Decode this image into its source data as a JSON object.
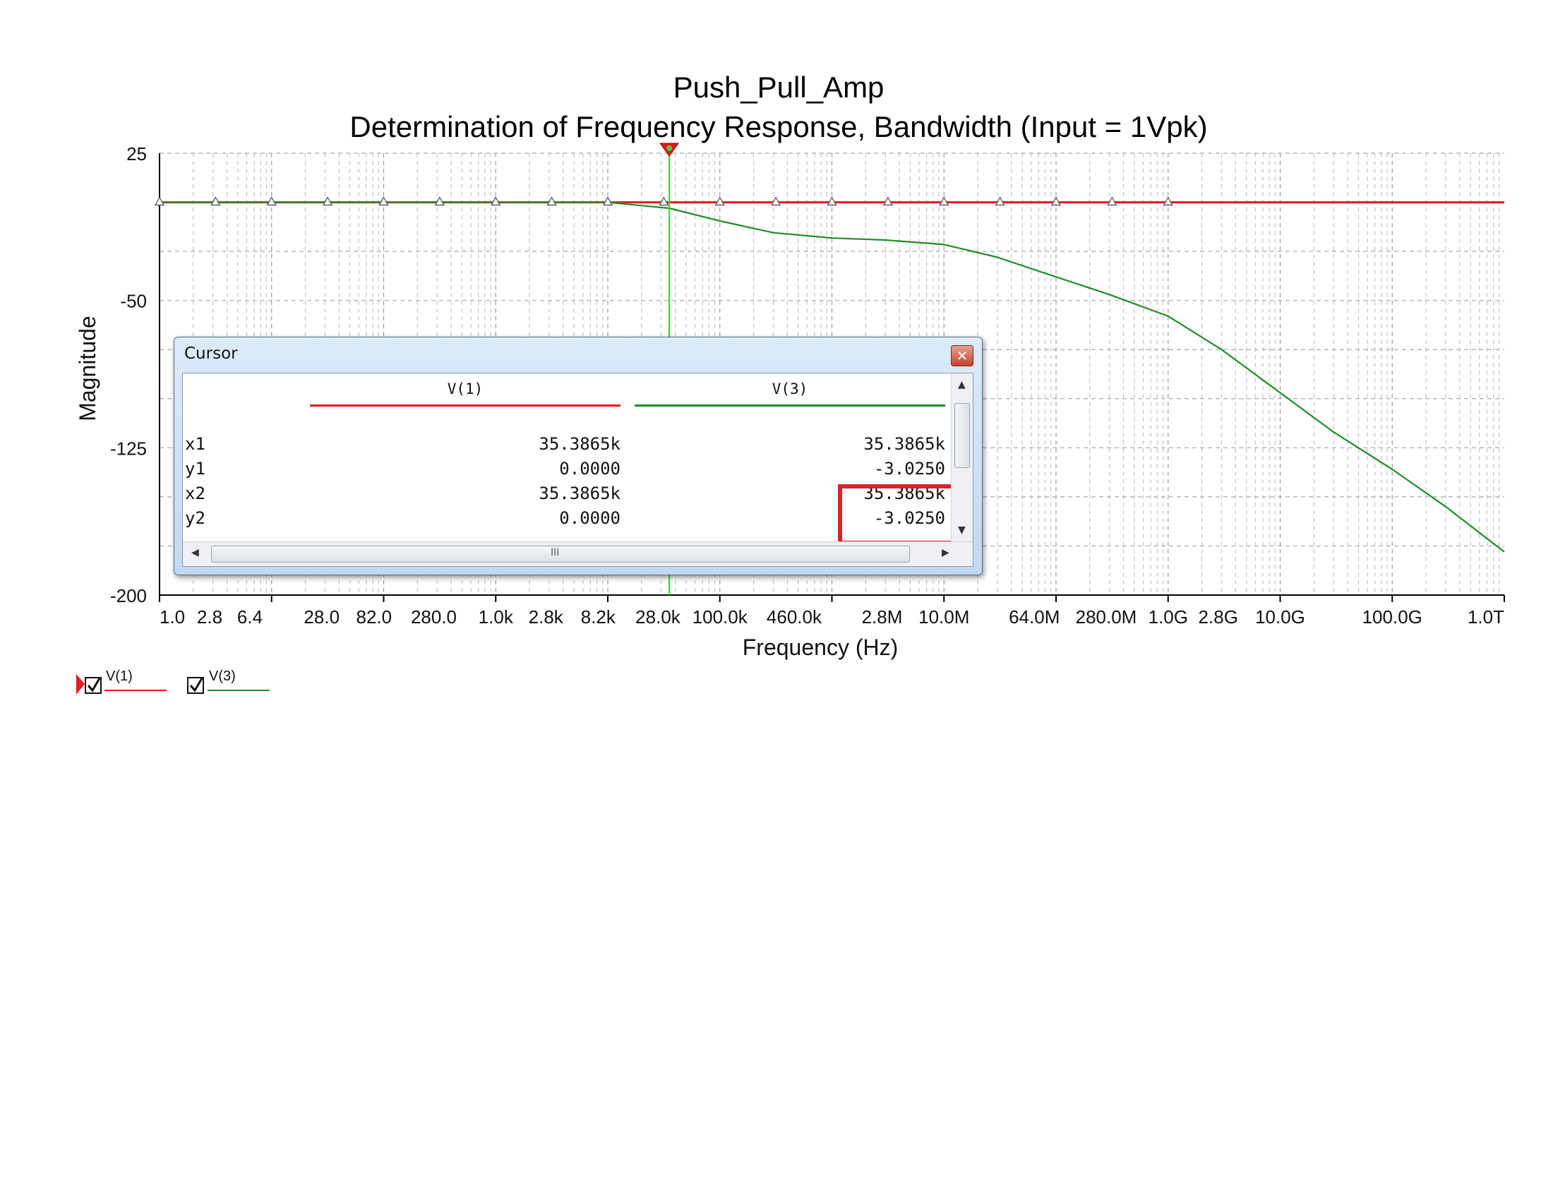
{
  "chart_data": {
    "type": "line",
    "title": "Push_Pull_Amp",
    "subtitle": "Determination of Frequency Response, Bandwidth (Input = 1Vpk)",
    "xlabel": "Frequency (Hz)",
    "ylabel": "Magnitude",
    "x_scale": "log",
    "xlim": [
      1,
      1000000000000
    ],
    "ylim": [
      -200,
      25
    ],
    "grid": true,
    "y_ticks": [
      {
        "value": 25,
        "label": "25"
      },
      {
        "value": -50,
        "label": "-50"
      },
      {
        "value": -125,
        "label": "-125"
      },
      {
        "value": -200,
        "label": "-200"
      }
    ],
    "x_ticks": [
      {
        "value": 1.0,
        "label": "1.0"
      },
      {
        "value": 2.8,
        "label": "2.8"
      },
      {
        "value": 6.4,
        "label": "6.4"
      },
      {
        "value": 28.0,
        "label": "28.0"
      },
      {
        "value": 82.0,
        "label": "82.0"
      },
      {
        "value": 280.0,
        "label": "280.0"
      },
      {
        "value": 1000,
        "label": "1.0k"
      },
      {
        "value": 2800,
        "label": "2.8k"
      },
      {
        "value": 8200,
        "label": "8.2k"
      },
      {
        "value": 28000,
        "label": "28.0k"
      },
      {
        "value": 100000,
        "label": "100.0k"
      },
      {
        "value": 460000,
        "label": "460.0k"
      },
      {
        "value": 2800000,
        "label": "2.8M"
      },
      {
        "value": 10000000,
        "label": "10.0M"
      },
      {
        "value": 64000000,
        "label": "64.0M"
      },
      {
        "value": 280000000,
        "label": "280.0M"
      },
      {
        "value": 1000000000,
        "label": "1.0G"
      },
      {
        "value": 2800000000,
        "label": "2.8G"
      },
      {
        "value": 10000000000,
        "label": "10.0G"
      },
      {
        "value": 100000000000,
        "label": "100.0G"
      },
      {
        "value": 1000000000000,
        "label": "1.0T"
      }
    ],
    "series": [
      {
        "name": "V(1)",
        "color": "#e8191e",
        "x": [
          1,
          1000000000000
        ],
        "y": [
          0,
          0
        ]
      },
      {
        "name": "V(3)",
        "color": "#1e8c28",
        "x": [
          1,
          10000,
          35386.5,
          100000,
          300000,
          1000000,
          3000000,
          10000000,
          30000000,
          100000000,
          300000000,
          1000000000,
          3000000000,
          10000000000,
          30000000000,
          100000000000,
          300000000000,
          1000000000000
        ],
        "y": [
          0,
          0,
          -3.025,
          -9.5,
          -15.5,
          -18.2,
          -19.2,
          -21.5,
          -28,
          -38,
          -47,
          -58,
          -75,
          -97,
          -117,
          -136,
          -155,
          -178
        ]
      }
    ],
    "markers_x": [
      1,
      3.16,
      10,
      31.6,
      100,
      316,
      1000,
      3162,
      10000,
      31623,
      100000,
      316228,
      1000000,
      3162278,
      10000000,
      31622777,
      100000000,
      316227766,
      1000000000
    ],
    "cursor_x": 35386.5,
    "legend": {
      "placement": "bottom-left",
      "items": [
        {
          "label": "V(1)",
          "color": "#e8191e",
          "checked": true
        },
        {
          "label": "V(3)",
          "color": "#1e8c28",
          "checked": true
        }
      ]
    }
  },
  "cursor_window": {
    "title": "Cursor",
    "close_glyph": "✕",
    "columns": [
      {
        "name": "V(1)",
        "color": "#e8191e"
      },
      {
        "name": "V(3)",
        "color": "#1e8c28"
      }
    ],
    "rows": [
      {
        "label": "x1",
        "values": [
          "35.3865k",
          "35.3865k"
        ]
      },
      {
        "label": "y1",
        "values": [
          "0.0000",
          "-3.0250"
        ]
      },
      {
        "label": "x2",
        "values": [
          "35.3865k",
          "35.3865k"
        ]
      },
      {
        "label": "y2",
        "values": [
          "0.0000",
          "-3.0250"
        ]
      }
    ],
    "scroll_grip_glyph": "III",
    "highlight_color": "#e0212b"
  },
  "icons": {
    "close": "close-icon",
    "checkbox": "checkbox-checked-icon",
    "cursor_marker": "cursor-marker-icon"
  }
}
